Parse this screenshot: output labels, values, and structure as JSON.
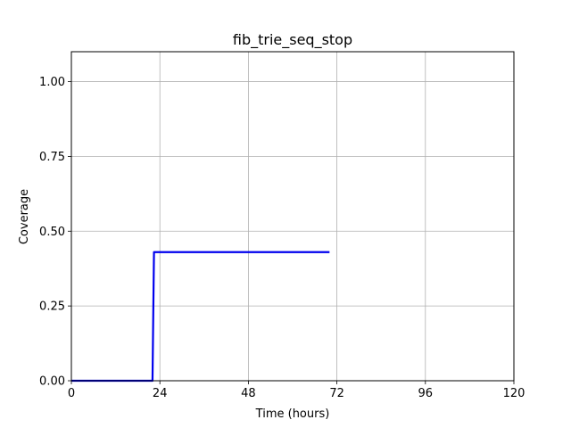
{
  "chart_data": {
    "type": "line",
    "title": "fib_trie_seq_stop",
    "xlabel": "Time (hours)",
    "ylabel": "Coverage",
    "xlim": [
      0,
      120
    ],
    "ylim": [
      0,
      1.1
    ],
    "x_ticks": [
      0,
      24,
      48,
      72,
      96,
      120
    ],
    "x_tick_labels": [
      "0",
      "24",
      "48",
      "72",
      "96",
      "120"
    ],
    "y_ticks": [
      0,
      0.25,
      0.5,
      0.75,
      1.0
    ],
    "y_tick_labels": [
      "0.00",
      "0.25",
      "0.50",
      "0.75",
      "1.00"
    ],
    "grid": true,
    "series": [
      {
        "color": "#0000ee",
        "x": [
          0,
          22,
          22.4,
          70
        ],
        "y": [
          0,
          0,
          0.43,
          0.43
        ]
      }
    ]
  }
}
